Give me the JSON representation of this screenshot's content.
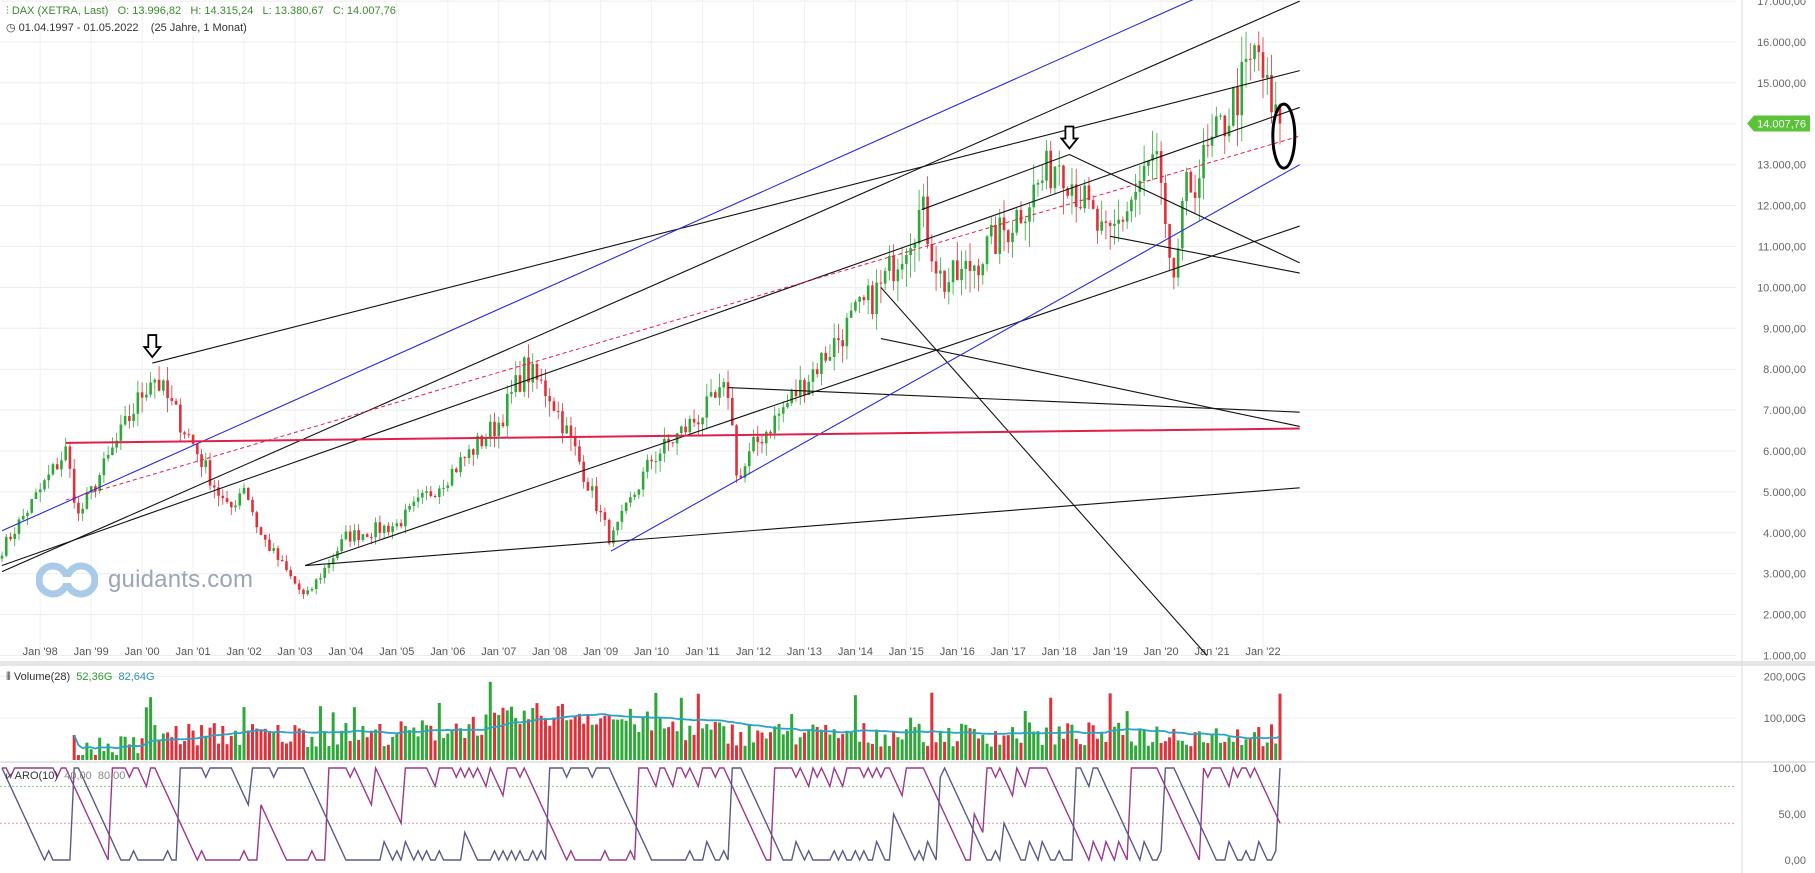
{
  "header": {
    "symbol": "DAX (XETRA, Last)",
    "open": "O: 13.996,82",
    "high": "H: 14.315,24",
    "low": "L: 13.380,67",
    "close": "C: 14.007,76",
    "range": "01.04.1997 - 01.05.2022",
    "duration": "(25 Jahre, 1 Monat)"
  },
  "logo_text": "guidants.com",
  "price_label": "14.007,76",
  "volume_header": {
    "name": "Volume(28)",
    "v1": "52,36G",
    "v2": "82,64G"
  },
  "aro_header": {
    "name": "ARO(10)",
    "v1": "40,00",
    "v2": "80,00"
  },
  "colors": {
    "up": "#2fa83a",
    "down": "#e0303a",
    "blue_line": "#2a2ad8",
    "red_line": "#e0204a",
    "vol_ma": "#2aa3c8",
    "aroon_up": "#9a3a8a",
    "aroon_down": "#5a5a8a",
    "price_tag": "#5cc23a"
  },
  "chart_data": [
    {
      "type": "candlestick",
      "title": "DAX (XETRA, Last)",
      "interval": "monthly",
      "x_ticks": [
        "Jan '98",
        "Jan '99",
        "Jan '00",
        "Jan '01",
        "Jan '02",
        "Jan '03",
        "Jan '04",
        "Jan '05",
        "Jan '06",
        "Jan '07",
        "Jan '08",
        "Jan '09",
        "Jan '10",
        "Jan '11",
        "Jan '12",
        "Jan '13",
        "Jan '14",
        "Jan '15",
        "Jan '16",
        "Jan '17",
        "Jan '18",
        "Jan '19",
        "Jan '20",
        "Jan '21",
        "Jan '22"
      ],
      "y_ticks": [
        "1.000,00",
        "2.000,00",
        "3.000,00",
        "4.000,00",
        "5.000,00",
        "6.000,00",
        "7.000,00",
        "8.000,00",
        "9.000,00",
        "10.000,00",
        "11.000,00",
        "12.000,00",
        "13.000,00",
        "14.000,00",
        "15.000,00",
        "16.000,00",
        "17.000,00"
      ],
      "ylim": [
        1000,
        17100
      ],
      "close_anchor_years": [
        1997.25,
        1998.5,
        1998.75,
        1999.0,
        2000.2,
        2000.9,
        2001.7,
        2002.0,
        2002.3,
        2003.2,
        2004.0,
        2005.0,
        2006.0,
        2007.0,
        2007.5,
        2008.0,
        2008.5,
        2009.2,
        2010.0,
        2011.5,
        2011.7,
        2012.0,
        2013.0,
        2014.0,
        2014.5,
        2015.3,
        2015.7,
        2016.1,
        2017.0,
        2018.0,
        2018.9,
        2019.0,
        2019.9,
        2020.2,
        2020.5,
        2021.0,
        2021.9,
        2022.2,
        2022.33
      ],
      "close_anchor_values": [
        3600,
        6000,
        4400,
        5000,
        7900,
        6400,
        4500,
        5200,
        4000,
        2400,
        3900,
        4200,
        5400,
        6700,
        8000,
        7400,
        6000,
        3800,
        5800,
        7500,
        5200,
        6100,
        7700,
        9300,
        10000,
        11900,
        10100,
        10300,
        11500,
        13200,
        11100,
        11200,
        13250,
        9900,
        12300,
        13400,
        15800,
        14000,
        14007.76
      ],
      "annotations": [
        "down-arrow at Jan '00 peak",
        "down-arrow at Jan '18 peak",
        "ellipse around current price Jan '22"
      ]
    },
    {
      "type": "bar",
      "title": "Volume(28)",
      "y_ticks": [
        "100,00G",
        "200,00G"
      ],
      "ylim": [
        0,
        220
      ],
      "series": [
        {
          "name": "52,36G"
        },
        {
          "name": "82,64G"
        }
      ]
    },
    {
      "type": "line",
      "title": "ARO(10)",
      "y_ticks": [
        "0,00",
        "50,00",
        "100,00"
      ],
      "ylim": [
        0,
        100
      ],
      "levels": [
        40,
        80
      ],
      "series": [
        {
          "name": "40,00"
        },
        {
          "name": "80,00"
        }
      ]
    }
  ]
}
